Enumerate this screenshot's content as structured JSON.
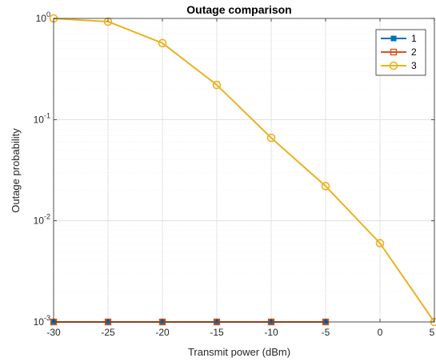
{
  "chart_data": {
    "type": "line",
    "title": "Outage comparison",
    "xlabel": "Transmit power (dBm)",
    "ylabel": "Outage probability",
    "x": [
      -30,
      -25,
      -20,
      -15,
      -10,
      -5,
      0,
      5
    ],
    "xlim": [
      -30,
      5
    ],
    "ylim": [
      0.001,
      1
    ],
    "yscale": "log",
    "x_ticks": [
      "-30",
      "-25",
      "-20",
      "-15",
      "-10",
      "-5",
      "0",
      "5"
    ],
    "y_ticks": [
      {
        "base": "10",
        "exp": "0"
      },
      {
        "base": "10",
        "exp": "-1"
      },
      {
        "base": "10",
        "exp": "-2"
      },
      {
        "base": "10",
        "exp": "-3"
      }
    ],
    "grid": true,
    "legend_position": "top-right",
    "series": [
      {
        "name": "1",
        "color": "#0072BD",
        "marker": "filled-square",
        "x": [
          -30,
          -25,
          -20,
          -15,
          -10,
          -5
        ],
        "values": [
          0.001,
          0.001,
          0.001,
          0.001,
          0.001,
          0.001
        ]
      },
      {
        "name": "2",
        "color": "#D95319",
        "marker": "open-square",
        "x": [
          -30,
          -25,
          -20,
          -15,
          -10,
          -5
        ],
        "values": [
          0.001,
          0.001,
          0.001,
          0.001,
          0.001,
          0.001
        ]
      },
      {
        "name": "3",
        "color": "#EDB120",
        "marker": "open-circle",
        "x": [
          -30,
          -25,
          -20,
          -15,
          -10,
          -5,
          0,
          5
        ],
        "values": [
          1.0,
          0.93,
          0.57,
          0.22,
          0.066,
          0.022,
          0.006,
          0.001
        ]
      }
    ]
  }
}
